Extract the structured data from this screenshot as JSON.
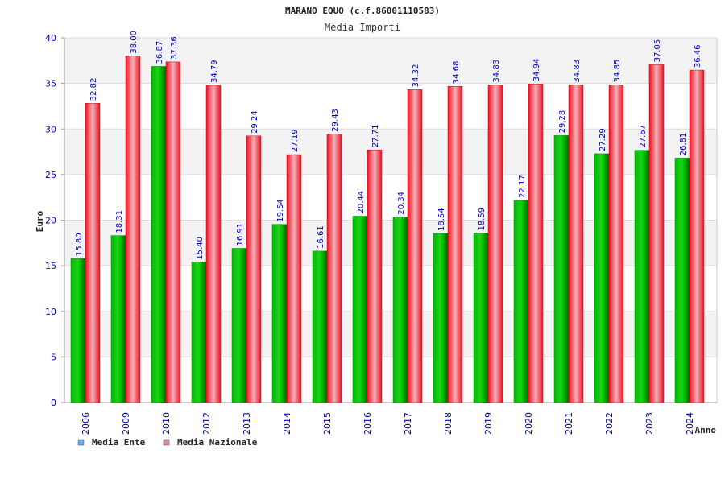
{
  "chart_data": {
    "type": "bar",
    "title": "MARANO EQUO (c.f.86001110583)",
    "subtitle": "Media Importi",
    "xlabel": "Anno",
    "ylabel": "Euro",
    "ylim": [
      0,
      40
    ],
    "yticks": [
      "0",
      "5",
      "10",
      "15",
      "20",
      "25",
      "30",
      "35",
      "40"
    ],
    "grid": true,
    "legend_position": "bottom-left",
    "categories": [
      "2006",
      "2009",
      "2010",
      "2012",
      "2013",
      "2014",
      "2015",
      "2016",
      "2017",
      "2018",
      "2019",
      "2020",
      "2021",
      "2022",
      "2023",
      "2024"
    ],
    "series": [
      {
        "name": "Media Ente",
        "color": "#00aa00",
        "legend_color": "#66aaee",
        "values": [
          15.8,
          18.31,
          36.87,
          15.4,
          16.91,
          19.54,
          16.61,
          20.44,
          20.34,
          18.54,
          18.59,
          22.17,
          29.28,
          27.29,
          27.67,
          26.81
        ],
        "labels": [
          "15.80",
          "18.31",
          "36.87",
          "15.40",
          "16.91",
          "19.54",
          "16.61",
          "20.44",
          "20.34",
          "18.54",
          "18.59",
          "22.17",
          "29.28",
          "27.29",
          "27.67",
          "26.81"
        ]
      },
      {
        "name": "Media Nazionale",
        "color": "#ee1122",
        "legend_color": "#dd88aa",
        "values": [
          32.82,
          38.0,
          37.36,
          34.79,
          29.24,
          27.19,
          29.43,
          27.71,
          34.32,
          34.68,
          34.83,
          34.94,
          34.83,
          34.85,
          37.05,
          36.46
        ],
        "labels": [
          "32.82",
          "38.00",
          "37.36",
          "34.79",
          "29.24",
          "27.19",
          "29.43",
          "27.71",
          "34.32",
          "34.68",
          "34.83",
          "34.94",
          "34.83",
          "34.85",
          "37.05",
          "36.46"
        ]
      }
    ]
  }
}
